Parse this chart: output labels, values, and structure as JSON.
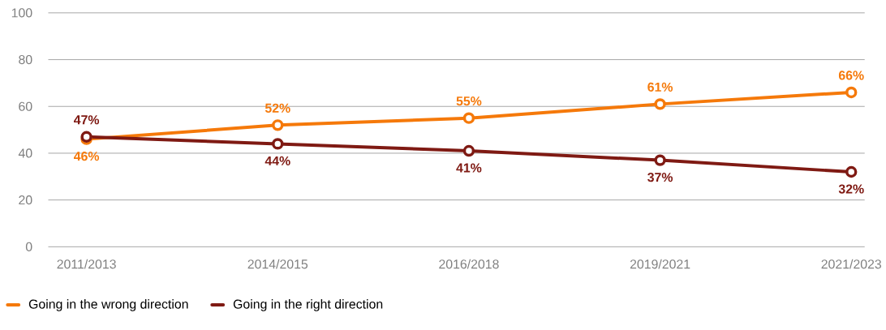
{
  "chart_data": {
    "type": "line",
    "categories": [
      "2011/2013",
      "2014/2015",
      "2016/2018",
      "2019/2021",
      "2021/2023"
    ],
    "series": [
      {
        "name": "Going in the wrong direction",
        "color": "#f5790a",
        "values": [
          46,
          52,
          55,
          61,
          66
        ],
        "value_labels": [
          "46%",
          "52%",
          "55%",
          "61%",
          "66%"
        ]
      },
      {
        "name": "Going in the right direction",
        "color": "#7f1a13",
        "values": [
          47,
          44,
          41,
          37,
          32
        ],
        "value_labels": [
          "47%",
          "44%",
          "41%",
          "37%",
          "32%"
        ]
      }
    ],
    "ylim": [
      0,
      100
    ],
    "yticks": [
      0,
      20,
      40,
      60,
      80,
      100
    ],
    "grid": "y",
    "legend": "bottom left",
    "marker": "circle",
    "line_style": "solid"
  }
}
